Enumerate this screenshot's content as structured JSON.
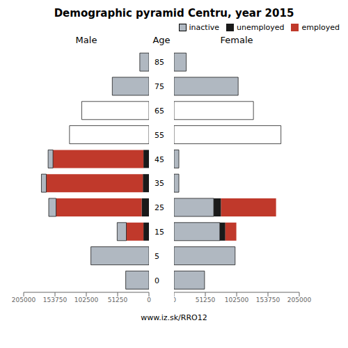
{
  "title": "Demographic pyramid Centru, year 2015",
  "annotations": [
    "www.iz.sk/RRO12"
  ],
  "chart_data": [
    {
      "type": "bar",
      "orientation": "horizontal",
      "stacked": true,
      "title": "Male",
      "ylabel": "Age",
      "categories": [
        "0",
        "5",
        "15",
        "25",
        "35",
        "45",
        "55",
        "65",
        "75",
        "85"
      ],
      "series": [
        {
          "name": "unemployed",
          "color": "#1a1a1a",
          "values": [
            0,
            0,
            9000,
            12000,
            10000,
            9000,
            0,
            0,
            0,
            0
          ]
        },
        {
          "name": "employed",
          "color": "#c0392b",
          "values": [
            0,
            0,
            28000,
            140000,
            158000,
            148000,
            0,
            0,
            0,
            0
          ]
        },
        {
          "name": "inactive",
          "color": "#b0b8c1",
          "colors": [
            "#b0b8c1",
            "#b0b8c1",
            "#b0b8c1",
            "#b0b8c1",
            "#b0b8c1",
            "#b0b8c1",
            "#ffffff",
            "#ffffff",
            "#b0b8c1",
            "#b0b8c1"
          ],
          "values": [
            38000,
            95000,
            15000,
            12000,
            8000,
            8000,
            130000,
            110000,
            60000,
            15000
          ]
        }
      ],
      "xlim": [
        0,
        205000
      ],
      "xticks": [
        0,
        51250,
        102500,
        153750,
        205000
      ]
    },
    {
      "type": "bar",
      "orientation": "horizontal",
      "stacked": true,
      "title": "Female",
      "tick_labels": "x",
      "legend": "upper right",
      "categories": [
        "0",
        "5",
        "15",
        "25",
        "35",
        "45",
        "55",
        "65",
        "75",
        "85"
      ],
      "series": [
        {
          "name": "inactive",
          "color": "#b0b8c1",
          "colors": [
            "#b0b8c1",
            "#b0b8c1",
            "#b0b8c1",
            "#b0b8c1",
            "#b0b8c1",
            "#b0b8c1",
            "#ffffff",
            "#ffffff",
            "#b0b8c1",
            "#b0b8c1"
          ],
          "values": [
            50000,
            100000,
            75000,
            65000,
            8000,
            8000,
            175000,
            130000,
            105000,
            20000
          ]
        },
        {
          "name": "unemployed",
          "color": "#1a1a1a",
          "values": [
            0,
            0,
            9000,
            12000,
            0,
            0,
            0,
            0,
            0,
            0
          ]
        },
        {
          "name": "employed",
          "color": "#c0392b",
          "values": [
            0,
            0,
            18000,
            90000,
            0,
            0,
            0,
            0,
            0,
            0
          ]
        }
      ],
      "xlim": [
        0,
        205000
      ],
      "xticks": [
        0,
        51250,
        102500,
        153750,
        205000
      ]
    }
  ]
}
